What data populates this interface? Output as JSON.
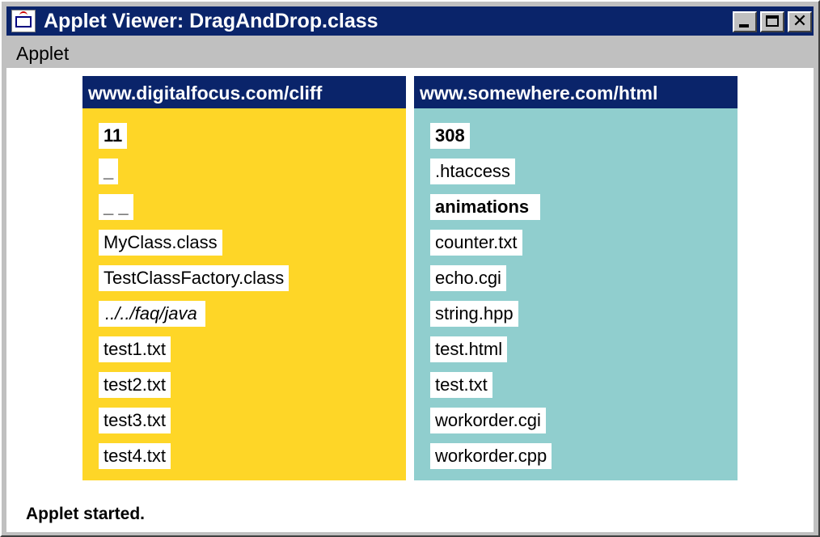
{
  "window": {
    "title": "Applet Viewer: DragAndDrop.class",
    "icon": "java-applet-icon",
    "controls": {
      "minimize": "minimize-icon",
      "maximize": "maximize-icon",
      "close": "close-icon"
    }
  },
  "menu": {
    "items": [
      "Applet"
    ]
  },
  "panels": {
    "left": {
      "header": "www.digitalfocus.com/cliff",
      "bg_color": "#fed627",
      "items": [
        "11",
        "_",
        "_ _",
        "MyClass.class",
        "TestClassFactory.class",
        "../../faq/java",
        "test1.txt",
        "test2.txt",
        "test3.txt",
        "test4.txt"
      ]
    },
    "right": {
      "header": "www.somewhere.com/html",
      "bg_color": "#90cece",
      "items": [
        "308",
        ".htaccess",
        "animations",
        "counter.txt",
        "echo.cgi",
        "string.hpp",
        "test.html",
        "test.txt",
        "workorder.cgi",
        "workorder.cpp"
      ]
    }
  },
  "colors": {
    "header": "#0a246a",
    "titlebar": "#0a246a"
  },
  "status": {
    "text": "Applet started."
  }
}
